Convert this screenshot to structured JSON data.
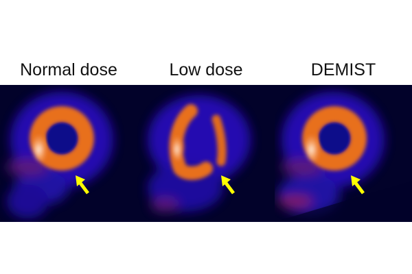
{
  "figure": {
    "panels": [
      {
        "label": "Normal dose",
        "image": "normal-dose-scan"
      },
      {
        "label": "Low dose",
        "image": "low-dose-scan"
      },
      {
        "label": "DEMIST",
        "image": "demist-scan"
      }
    ],
    "colors": {
      "background": "#02022a",
      "tissue_low": "#2a10c8",
      "uptake_high": "#f07a20",
      "uptake_peak": "#fff2e0",
      "arrow": "#ffff00"
    }
  }
}
